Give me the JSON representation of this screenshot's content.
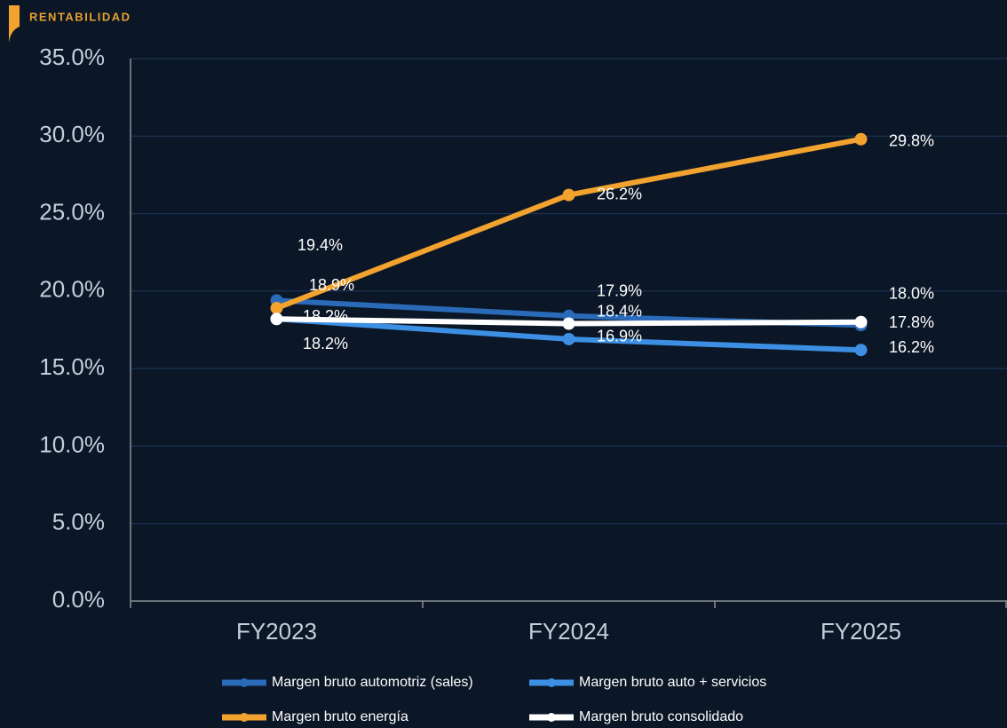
{
  "header": {
    "title": "RENTABILIDAD"
  },
  "chart_data": {
    "type": "line",
    "categories": [
      "FY2023",
      "FY2024",
      "FY2025"
    ],
    "series": [
      {
        "name": "Margen bruto automotriz (sales)",
        "color": "#2a6ab8",
        "values": [
          19.4,
          18.4,
          17.8
        ],
        "value_labels": [
          "19.4%",
          "18.4%",
          "17.8%"
        ]
      },
      {
        "name": "Margen bruto auto + servicios",
        "color": "#3d8fe3",
        "values": [
          18.2,
          16.9,
          16.2
        ],
        "value_labels": [
          "18.2%",
          "16.9%",
          "16.2%"
        ]
      },
      {
        "name": "Margen bruto energía",
        "color": "#f2a22e",
        "values": [
          18.9,
          26.2,
          29.8
        ],
        "value_labels": [
          "18.9%",
          "26.2%",
          "29.8%"
        ]
      },
      {
        "name": "Margen bruto consolidado",
        "color": "#ffffff",
        "values": [
          18.2,
          17.9,
          18.0
        ],
        "value_labels": [
          "18.2%",
          "17.9%",
          "18.0%"
        ]
      }
    ],
    "ylim": [
      0,
      35
    ],
    "yticks": [
      {
        "value": 0,
        "label": "0.0%"
      },
      {
        "value": 5,
        "label": "5.0%"
      },
      {
        "value": 10,
        "label": "10.0%"
      },
      {
        "value": 15,
        "label": "15.0%"
      },
      {
        "value": 20,
        "label": "20.0%"
      },
      {
        "value": 25,
        "label": "25.0%"
      },
      {
        "value": 30,
        "label": "30.0%"
      },
      {
        "value": 35,
        "label": "35.0%"
      }
    ],
    "grid": true
  }
}
